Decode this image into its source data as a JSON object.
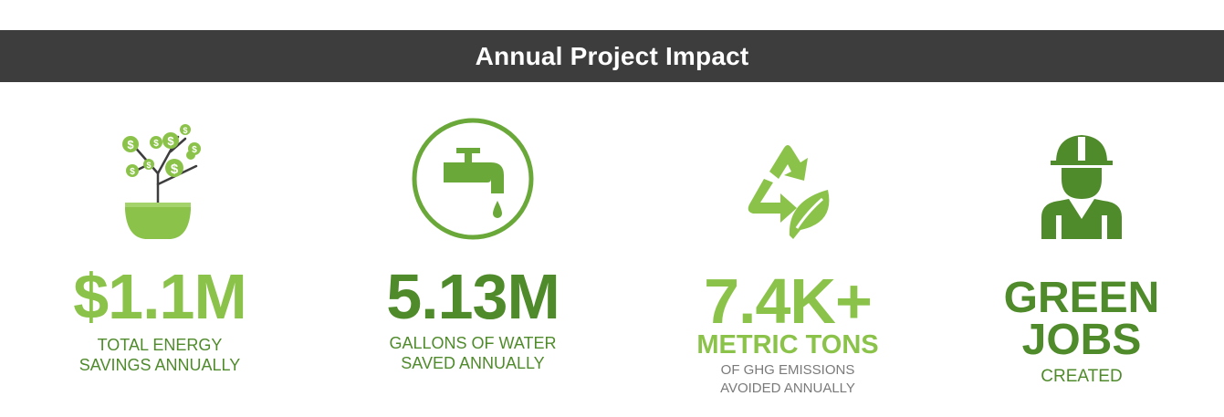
{
  "banner": {
    "title": "Annual Project Impact"
  },
  "colors": {
    "banner_bg": "#3d3d3d",
    "light_green": "#8bc34a",
    "mid_green": "#6aa83a",
    "dark_green": "#4f8a2b"
  },
  "stats": [
    {
      "icon": "money-plant-icon",
      "value": "$1.1M",
      "label_line1": "TOTAL ENERGY",
      "label_line2": "SAVINGS ANNUALLY"
    },
    {
      "icon": "water-faucet-icon",
      "value": "5.13M",
      "label_line1": "GALLONS OF WATER",
      "label_line2": "SAVED ANNUALLY"
    },
    {
      "icon": "recycle-leaf-icon",
      "value": "7.4K+",
      "label_line1": "METRIC TONS",
      "label_line2": "OF GHG EMISSIONS",
      "label_line3": "AVOIDED ANNUALLY"
    },
    {
      "icon": "worker-hardhat-icon",
      "value_line1": "GREEN",
      "value_line2": "JOBS",
      "label_line1": "CREATED"
    }
  ]
}
